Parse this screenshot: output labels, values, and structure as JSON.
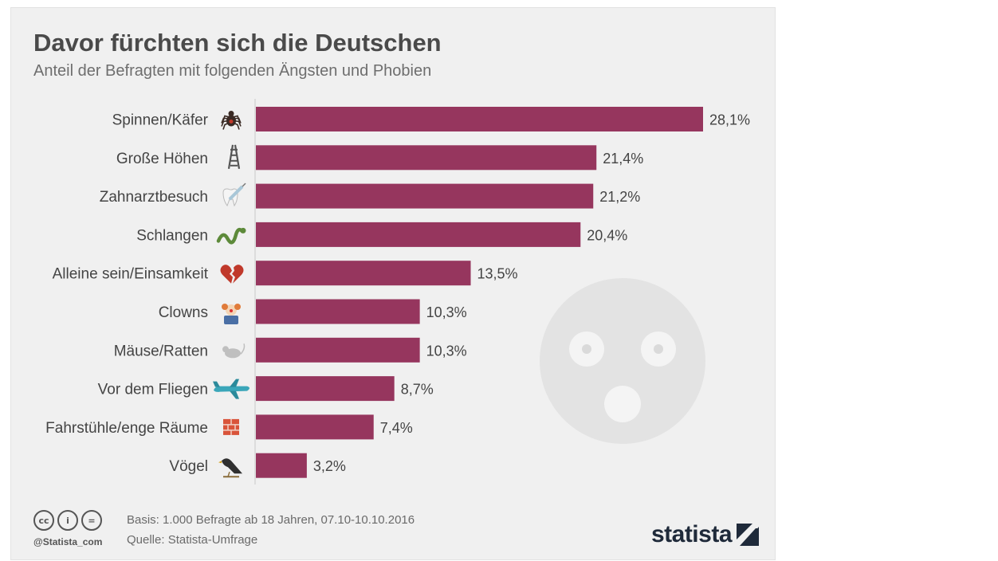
{
  "header": {
    "title": "Davor fürchten sich die Deutschen",
    "subtitle": "Anteil der Befragten mit folgenden Ängsten und Phobien"
  },
  "chart_data": {
    "type": "bar",
    "orientation": "horizontal",
    "categories": [
      "Spinnen/Käfer",
      "Große Höhen",
      "Zahnarztbesuch",
      "Schlangen",
      "Alleine sein/Einsamkeit",
      "Clowns",
      "Mäuse/Ratten",
      "Vor dem Fliegen",
      "Fahrstühle/enge Räume",
      "Vögel"
    ],
    "values": [
      28.1,
      21.4,
      21.2,
      20.4,
      13.5,
      10.3,
      10.3,
      8.7,
      7.4,
      3.2
    ],
    "value_labels": [
      "28,1%",
      "21,4%",
      "21,2%",
      "20,4%",
      "13,5%",
      "10,3%",
      "10,3%",
      "8,7%",
      "7,4%",
      "3,2%"
    ],
    "icons": [
      "spider-icon",
      "ladder-icon",
      "tooth-syringe-icon",
      "snake-icon",
      "broken-heart-icon",
      "clown-icon",
      "mouse-icon",
      "airplane-icon",
      "brick-wall-icon",
      "bird-icon"
    ],
    "bar_color": "#96365e",
    "xlim": [
      0,
      28.1
    ],
    "grid": false,
    "legend": "none"
  },
  "footer": {
    "license_icons": [
      "cc-icon",
      "by-icon",
      "nd-icon"
    ],
    "license_glyphs": [
      "cc",
      "i",
      "="
    ],
    "handle": "@Statista_com",
    "basis": "Basis: 1.000 Befragte ab 18 Jahren, 07.10-10.10.2016",
    "source": "Quelle: Statista-Umfrage",
    "logo": "statista"
  },
  "colors": {
    "background": "#f0f0f0",
    "bar": "#96365e",
    "decoration_face": "#e3e3e3"
  }
}
